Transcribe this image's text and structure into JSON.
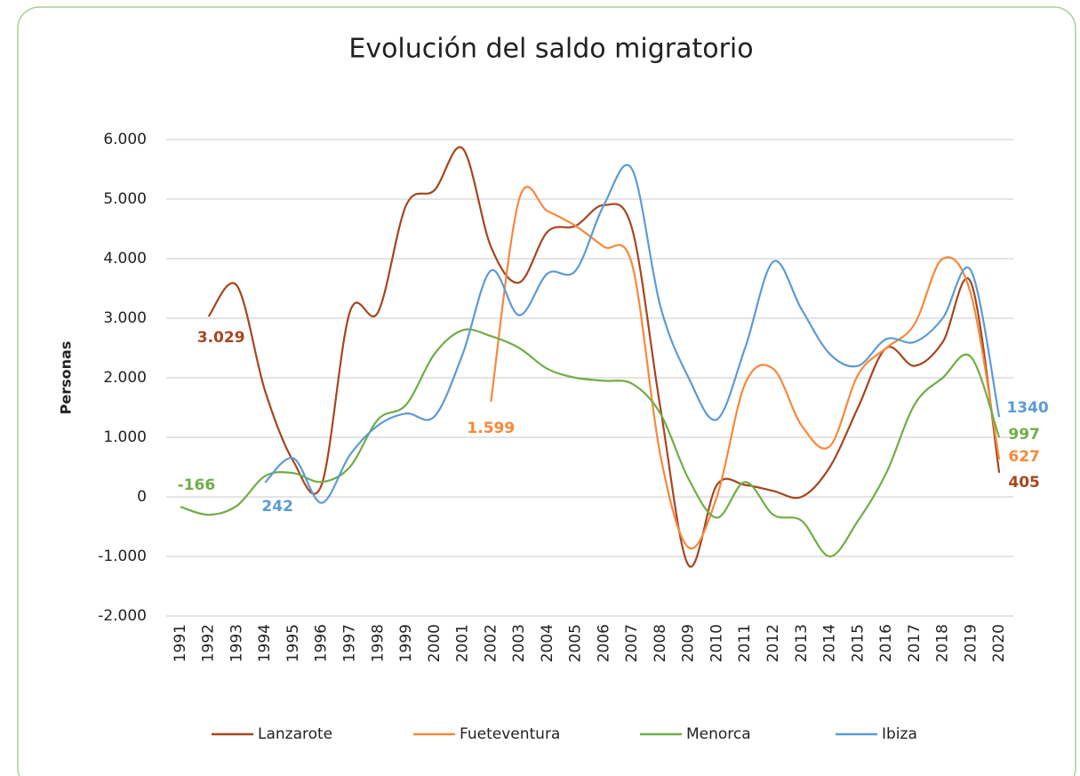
{
  "chart_data": {
    "type": "line",
    "title": "Evolución del saldo migratorio",
    "y_label": "Personas",
    "categories": [
      "1991",
      "1992",
      "1993",
      "1994",
      "1995",
      "1996",
      "1997",
      "1998",
      "1999",
      "2000",
      "2001",
      "2002",
      "2003",
      "2004",
      "2005",
      "2006",
      "2007",
      "2008",
      "2009",
      "2010",
      "2011",
      "2012",
      "2013",
      "2014",
      "2015",
      "2016",
      "2017",
      "2018",
      "2019",
      "2020"
    ],
    "series": [
      {
        "name": "Lanzarote",
        "color": "#a5461f",
        "values": [
          null,
          3029,
          3550,
          1780,
          600,
          200,
          3100,
          3100,
          4900,
          5150,
          5850,
          4200,
          3600,
          4450,
          4550,
          4900,
          4500,
          1500,
          -1150,
          200,
          200,
          100,
          0,
          500,
          1500,
          2500,
          2200,
          2600,
          3600,
          405
        ],
        "value_labels": [
          null,
          "3.029",
          null,
          null,
          null,
          null,
          null,
          null,
          null,
          null,
          null,
          null,
          null,
          null,
          null,
          null,
          null,
          null,
          null,
          null,
          null,
          null,
          null,
          null,
          null,
          null,
          null,
          null,
          null,
          "405"
        ]
      },
      {
        "name": "Fueteventura",
        "color": "#f7883a",
        "values": [
          null,
          null,
          null,
          null,
          null,
          null,
          null,
          null,
          null,
          null,
          null,
          1599,
          5000,
          4800,
          4550,
          4200,
          3900,
          700,
          -850,
          0,
          1900,
          2150,
          1200,
          850,
          2050,
          2500,
          2900,
          4000,
          3400,
          627
        ],
        "value_labels": [
          null,
          null,
          null,
          null,
          null,
          null,
          null,
          null,
          null,
          null,
          null,
          "1.599",
          null,
          null,
          null,
          null,
          null,
          null,
          null,
          null,
          null,
          null,
          null,
          null,
          null,
          null,
          null,
          null,
          null,
          "627"
        ]
      },
      {
        "name": "Menorca",
        "color": "#70ad47",
        "values": [
          -166,
          -300,
          -150,
          350,
          400,
          250,
          500,
          1300,
          1550,
          2400,
          2800,
          2700,
          2500,
          2150,
          2000,
          1950,
          1900,
          1400,
          300,
          -350,
          250,
          -300,
          -400,
          -1000,
          -400,
          400,
          1550,
          2000,
          2350,
          997
        ],
        "value_labels": [
          "-166",
          null,
          null,
          null,
          null,
          null,
          null,
          null,
          null,
          null,
          null,
          null,
          null,
          null,
          null,
          null,
          null,
          null,
          null,
          null,
          null,
          null,
          null,
          null,
          null,
          null,
          null,
          null,
          null,
          "997"
        ]
      },
      {
        "name": "Ibiza",
        "color": "#5b9bd5",
        "values": [
          null,
          null,
          null,
          242,
          650,
          -100,
          700,
          1200,
          1400,
          1350,
          2400,
          3800,
          3050,
          3750,
          3800,
          4900,
          5500,
          3200,
          2000,
          1300,
          2500,
          3950,
          3150,
          2400,
          2200,
          2650,
          2600,
          3000,
          3800,
          1340
        ],
        "value_labels": [
          null,
          null,
          null,
          "242",
          null,
          null,
          null,
          null,
          null,
          null,
          null,
          null,
          null,
          null,
          null,
          null,
          null,
          null,
          null,
          null,
          null,
          null,
          null,
          null,
          null,
          null,
          null,
          null,
          null,
          "1340"
        ]
      }
    ],
    "ylim": [
      -2000,
      6000
    ],
    "yticks": [
      {
        "value": -2000,
        "label": "-2.000"
      },
      {
        "value": -1000,
        "label": "-1.000"
      },
      0,
      {
        "value": 1000,
        "label": "1.000"
      },
      {
        "value": 2000,
        "label": "2.000"
      },
      {
        "value": 3000,
        "label": "3.000"
      },
      {
        "value": 4000,
        "label": "4.000"
      },
      {
        "value": 5000,
        "label": "5.000"
      },
      {
        "value": 6000,
        "label": "6.000"
      }
    ],
    "grid": true,
    "legend": "bottom"
  }
}
